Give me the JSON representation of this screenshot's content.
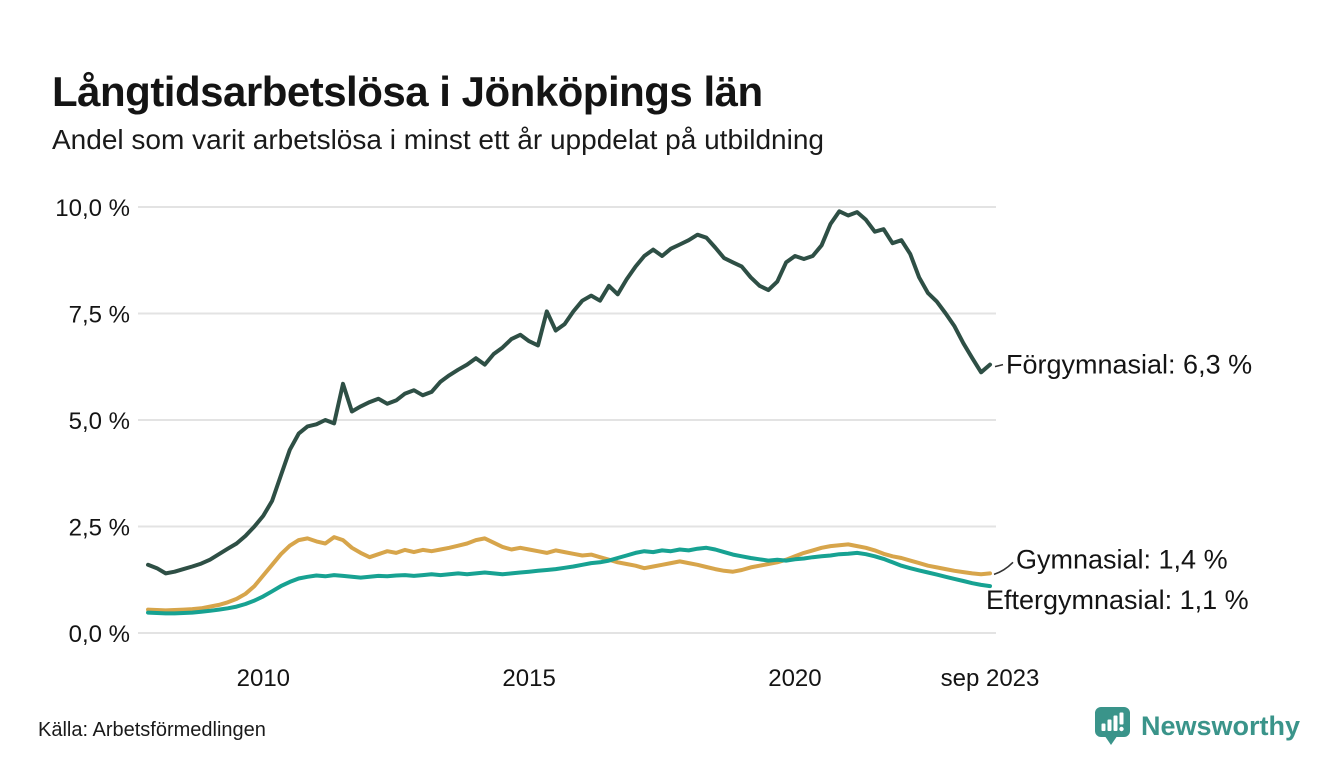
{
  "footer": {
    "source": "Källa: Arbetsförmedlingen",
    "brand": "Newsworthy"
  },
  "colors": {
    "forgymnasial": "#2e4f45",
    "gymnasial": "#d7a54b",
    "eftergymnasial": "#17a292",
    "grid": "#e3e3e3",
    "text": "#141414",
    "connector": "#333333",
    "brand_teal": "#3a948a"
  },
  "chart_data": {
    "type": "line",
    "title": "Långtidsarbetslösa i Jönköpings län",
    "subtitle": "Andel som varit arbetslösa i minst ett år uppdelat på utbildning",
    "xlabel": "",
    "ylabel": "",
    "x_start": 2007.83,
    "x_end": 2023.67,
    "x_end_label_note": "sep 2023",
    "ylim": [
      0,
      10.4
    ],
    "grid": "horizontal",
    "legend_position": "end-of-line-labels",
    "yticks": [
      {
        "value": 0,
        "label": "0,0 %"
      },
      {
        "value": 2.5,
        "label": "2,5 %"
      },
      {
        "value": 5,
        "label": "5,0 %"
      },
      {
        "value": 7.5,
        "label": "7,5 %"
      },
      {
        "value": 10,
        "label": "10,0 %"
      }
    ],
    "xticks": [
      {
        "value": 2010,
        "label": "2010"
      },
      {
        "value": 2015,
        "label": "2015"
      },
      {
        "value": 2020,
        "label": "2020"
      },
      {
        "value": 2023.67,
        "label": "sep 2023"
      }
    ],
    "series": [
      {
        "name": "Förgymnasial",
        "end_value_label": "6,3 %",
        "end_label": "Förgymnasial: 6,3 %",
        "color_key": "forgymnasial",
        "values": [
          1.6,
          1.52,
          1.4,
          1.44,
          1.5,
          1.56,
          1.63,
          1.72,
          1.85,
          1.98,
          2.1,
          2.28,
          2.5,
          2.75,
          3.1,
          3.7,
          4.3,
          4.68,
          4.85,
          4.9,
          5.0,
          4.92,
          5.85,
          5.2,
          5.32,
          5.42,
          5.5,
          5.38,
          5.46,
          5.62,
          5.7,
          5.58,
          5.66,
          5.9,
          6.05,
          6.18,
          6.3,
          6.45,
          6.3,
          6.55,
          6.7,
          6.9,
          7.0,
          6.85,
          6.75,
          7.55,
          7.1,
          7.25,
          7.55,
          7.8,
          7.92,
          7.8,
          8.15,
          7.95,
          8.3,
          8.6,
          8.85,
          9.0,
          8.85,
          9.02,
          9.12,
          9.22,
          9.35,
          9.28,
          9.05,
          8.8,
          8.7,
          8.6,
          8.35,
          8.15,
          8.05,
          8.25,
          8.7,
          8.85,
          8.78,
          8.85,
          9.1,
          9.6,
          9.9,
          9.8,
          9.88,
          9.7,
          9.42,
          9.48,
          9.15,
          9.22,
          8.9,
          8.35,
          7.98,
          7.78,
          7.5,
          7.2,
          6.8,
          6.45,
          6.12,
          6.3
        ]
      },
      {
        "name": "Gymnasial",
        "end_value_label": "1,4 %",
        "end_label": "Gymnasial: 1,4 %",
        "color_key": "gymnasial",
        "values": [
          0.55,
          0.54,
          0.53,
          0.54,
          0.55,
          0.56,
          0.58,
          0.62,
          0.66,
          0.72,
          0.8,
          0.92,
          1.1,
          1.35,
          1.6,
          1.85,
          2.05,
          2.18,
          2.22,
          2.15,
          2.1,
          2.25,
          2.18,
          2.0,
          1.88,
          1.78,
          1.85,
          1.92,
          1.88,
          1.95,
          1.9,
          1.95,
          1.92,
          1.96,
          2.0,
          2.05,
          2.1,
          2.18,
          2.22,
          2.12,
          2.02,
          1.96,
          2.0,
          1.96,
          1.92,
          1.88,
          1.94,
          1.9,
          1.86,
          1.82,
          1.84,
          1.78,
          1.72,
          1.66,
          1.62,
          1.58,
          1.52,
          1.56,
          1.6,
          1.64,
          1.68,
          1.64,
          1.6,
          1.55,
          1.5,
          1.46,
          1.44,
          1.48,
          1.54,
          1.58,
          1.62,
          1.66,
          1.72,
          1.8,
          1.88,
          1.94,
          2.0,
          2.04,
          2.06,
          2.08,
          2.04,
          2.0,
          1.94,
          1.86,
          1.8,
          1.76,
          1.7,
          1.64,
          1.58,
          1.54,
          1.5,
          1.46,
          1.43,
          1.4,
          1.38,
          1.4
        ]
      },
      {
        "name": "Eftergymnasial",
        "end_value_label": "1,1 %",
        "end_label": "Eftergymnasial: 1,1 %",
        "color_key": "eftergymnasial",
        "values": [
          0.48,
          0.47,
          0.46,
          0.46,
          0.47,
          0.48,
          0.5,
          0.52,
          0.55,
          0.58,
          0.62,
          0.68,
          0.76,
          0.86,
          0.98,
          1.1,
          1.2,
          1.28,
          1.32,
          1.35,
          1.33,
          1.36,
          1.34,
          1.32,
          1.3,
          1.32,
          1.34,
          1.33,
          1.35,
          1.36,
          1.34,
          1.36,
          1.38,
          1.36,
          1.38,
          1.4,
          1.38,
          1.4,
          1.42,
          1.4,
          1.38,
          1.4,
          1.42,
          1.44,
          1.46,
          1.48,
          1.5,
          1.53,
          1.56,
          1.6,
          1.64,
          1.66,
          1.7,
          1.76,
          1.82,
          1.88,
          1.92,
          1.9,
          1.94,
          1.92,
          1.96,
          1.94,
          1.98,
          2.0,
          1.96,
          1.9,
          1.84,
          1.8,
          1.76,
          1.73,
          1.7,
          1.72,
          1.7,
          1.73,
          1.75,
          1.78,
          1.8,
          1.82,
          1.85,
          1.86,
          1.88,
          1.85,
          1.8,
          1.74,
          1.66,
          1.58,
          1.52,
          1.47,
          1.42,
          1.37,
          1.32,
          1.27,
          1.22,
          1.17,
          1.13,
          1.1
        ]
      }
    ]
  }
}
